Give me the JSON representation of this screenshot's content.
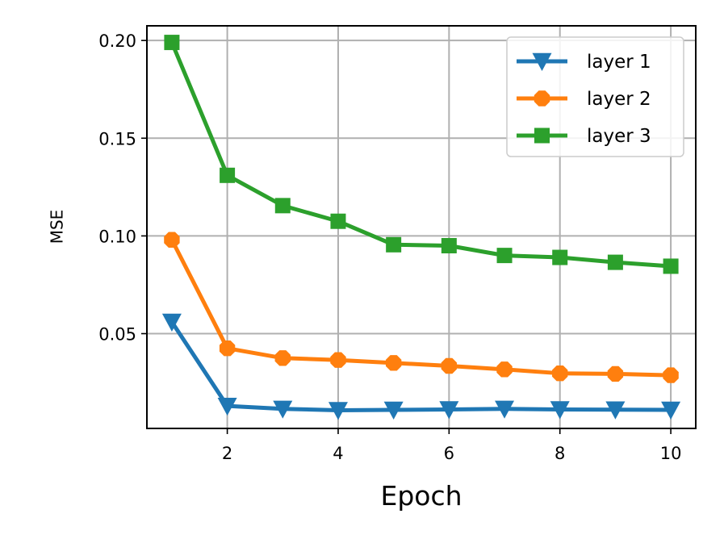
{
  "chart_data": {
    "type": "line",
    "title": "",
    "xlabel": "Epoch",
    "ylabel": "MSE",
    "x": [
      1,
      2,
      3,
      4,
      5,
      6,
      7,
      8,
      9,
      10
    ],
    "xlim": [
      0.55,
      10.45
    ],
    "ylim": [
      0.0015,
      0.2075
    ],
    "xticks": [
      2,
      4,
      6,
      8,
      10
    ],
    "xtick_labels": [
      "2",
      "4",
      "6",
      "8",
      "10"
    ],
    "yticks": [
      0.05,
      0.1,
      0.15,
      0.2
    ],
    "ytick_labels": [
      "0.05",
      "0.10",
      "0.15",
      "0.20"
    ],
    "grid": true,
    "legend_position": "top-right",
    "series": [
      {
        "name": "layer 1",
        "color": "#1f77b4",
        "marker": "triangle-down",
        "values": [
          0.056,
          0.013,
          0.0115,
          0.0108,
          0.011,
          0.0112,
          0.0115,
          0.0112,
          0.0111,
          0.011
        ]
      },
      {
        "name": "layer 2",
        "color": "#ff7f0e",
        "marker": "octagon",
        "values": [
          0.098,
          0.0425,
          0.0375,
          0.0365,
          0.035,
          0.0335,
          0.0317,
          0.0297,
          0.0294,
          0.0287
        ]
      },
      {
        "name": "layer 3",
        "color": "#2ca02c",
        "marker": "square",
        "values": [
          0.199,
          0.131,
          0.1155,
          0.1075,
          0.0955,
          0.095,
          0.09,
          0.089,
          0.0865,
          0.0845
        ]
      }
    ]
  }
}
